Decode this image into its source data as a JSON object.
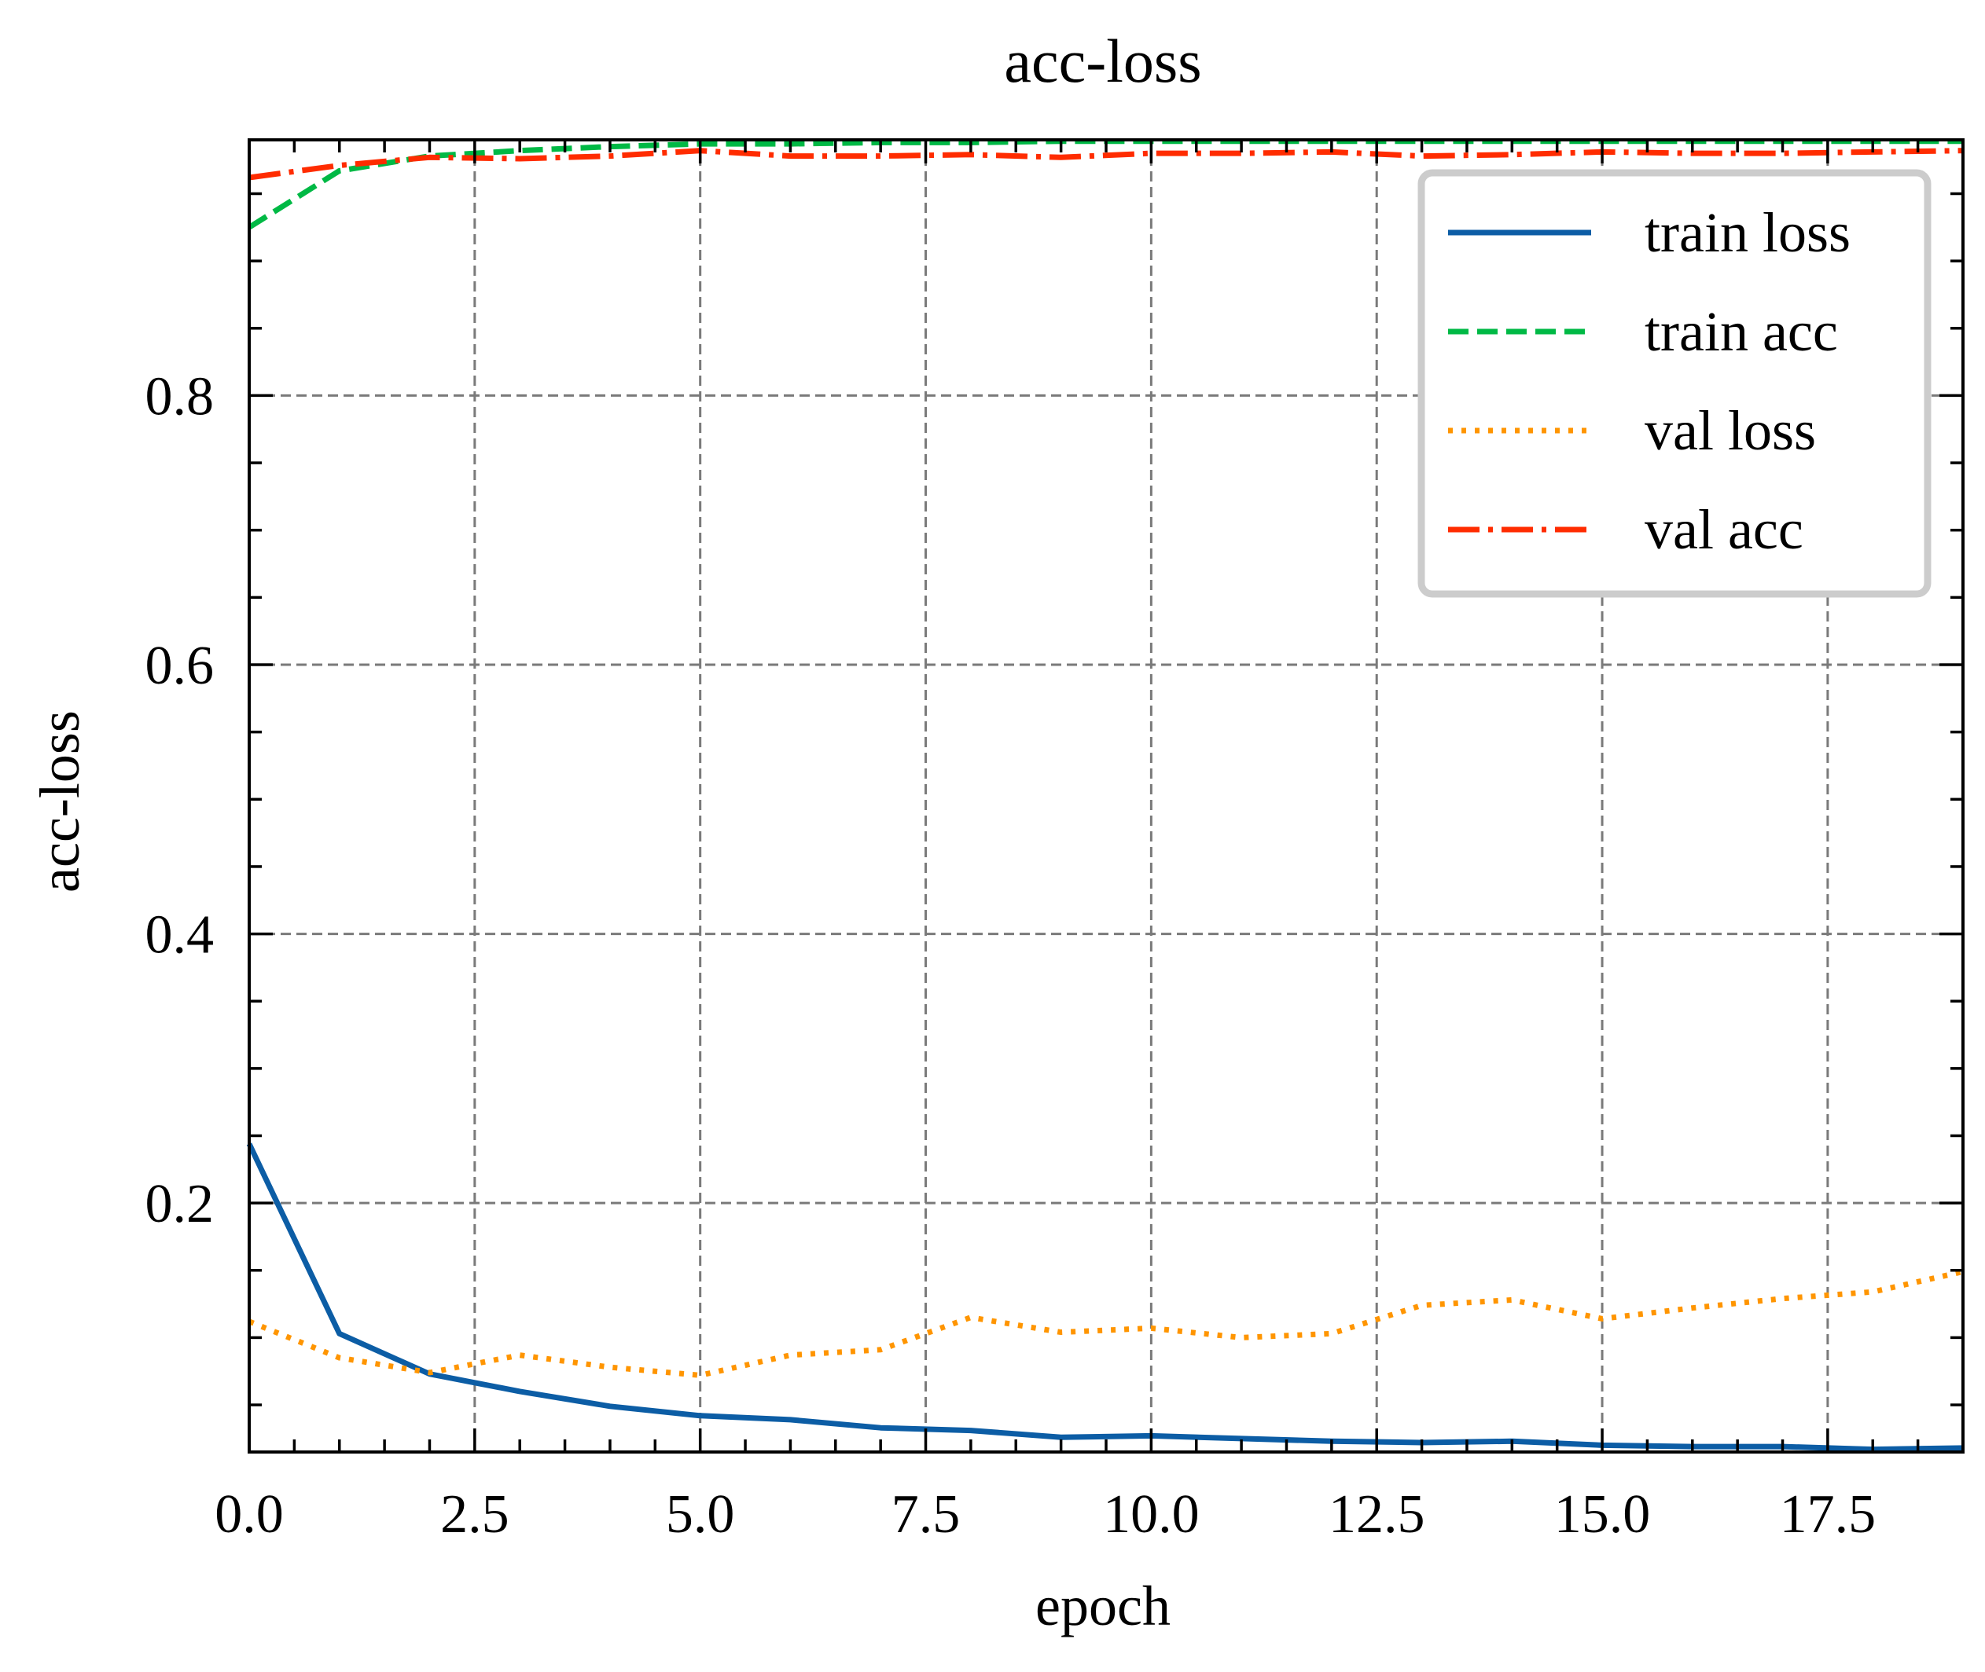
{
  "chart_data": {
    "type": "line",
    "title": "acc-loss",
    "xlabel": "epoch",
    "ylabel": "acc-loss",
    "xlim": [
      0,
      19
    ],
    "ylim": [
      0.015,
      0.99
    ],
    "x_ticks": [
      0.0,
      2.5,
      5.0,
      7.5,
      10.0,
      12.5,
      15.0,
      17.5
    ],
    "x_tick_labels": [
      "0.0",
      "2.5",
      "5.0",
      "7.5",
      "10.0",
      "12.5",
      "15.0",
      "17.5"
    ],
    "y_ticks": [
      0.2,
      0.4,
      0.6,
      0.8
    ],
    "y_tick_labels": [
      "0.2",
      "0.4",
      "0.6",
      "0.8"
    ],
    "grid": true,
    "legend_position": "top-right",
    "x": [
      0,
      1,
      2,
      3,
      4,
      5,
      6,
      7,
      8,
      9,
      10,
      11,
      12,
      13,
      14,
      15,
      16,
      17,
      18,
      19
    ],
    "series": [
      {
        "name": "train loss",
        "color": "#0C5DA5",
        "style": "solid",
        "values": [
          0.244,
          0.103,
          0.073,
          0.06,
          0.049,
          0.042,
          0.039,
          0.033,
          0.031,
          0.026,
          0.027,
          0.025,
          0.023,
          0.022,
          0.023,
          0.02,
          0.019,
          0.019,
          0.017,
          0.018
        ]
      },
      {
        "name": "train acc",
        "color": "#00B945",
        "style": "dashed",
        "values": [
          0.925,
          0.967,
          0.978,
          0.982,
          0.985,
          0.987,
          0.987,
          0.988,
          0.988,
          0.989,
          0.989,
          0.989,
          0.989,
          0.989,
          0.989,
          0.989,
          0.989,
          0.989,
          0.989,
          0.989
        ]
      },
      {
        "name": "val loss",
        "color": "#FF9500",
        "style": "dotted",
        "values": [
          0.112,
          0.085,
          0.074,
          0.087,
          0.078,
          0.072,
          0.087,
          0.091,
          0.115,
          0.104,
          0.107,
          0.1,
          0.103,
          0.124,
          0.128,
          0.114,
          0.122,
          0.129,
          0.134,
          0.149
        ]
      },
      {
        "name": "val acc",
        "color": "#FF2C00",
        "style": "dashdot",
        "values": [
          0.962,
          0.971,
          0.977,
          0.976,
          0.978,
          0.982,
          0.978,
          0.978,
          0.979,
          0.977,
          0.98,
          0.98,
          0.981,
          0.978,
          0.979,
          0.981,
          0.98,
          0.98,
          0.981,
          0.982
        ]
      }
    ]
  }
}
